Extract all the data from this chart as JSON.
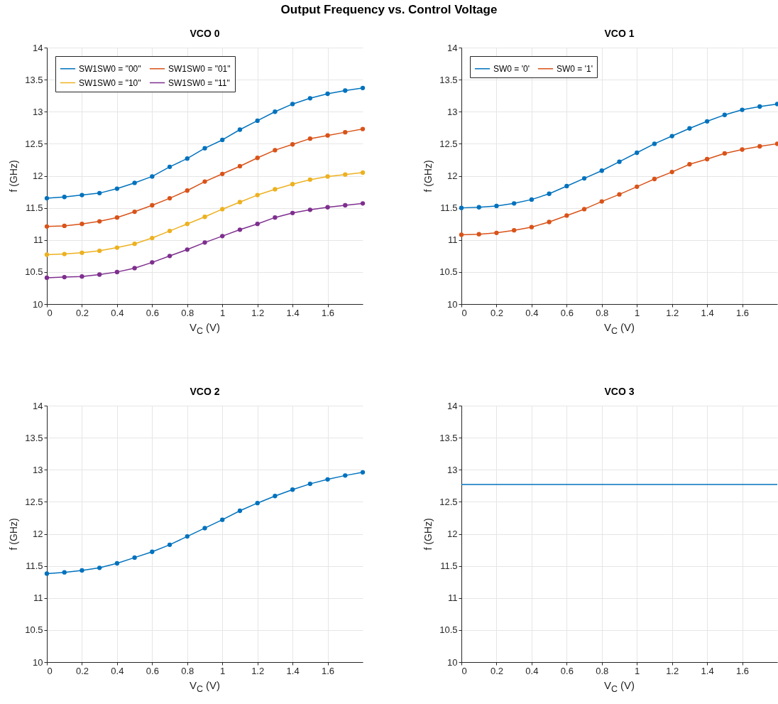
{
  "chart_data": [
    {
      "type": "line",
      "title": "VCO 0",
      "annotations": [
        "Output Frequency vs. Control Voltage"
      ],
      "xlabel": "V$_{C}$ (V)",
      "ylabel": "f (GHz)",
      "x": [
        0,
        0.1,
        0.2,
        0.3,
        0.4,
        0.5,
        0.6,
        0.7,
        0.8,
        0.9,
        1,
        1.1,
        1.2,
        1.3,
        1.4,
        1.5,
        1.6,
        1.7,
        1.8
      ],
      "xlim": [
        0,
        1.8
      ],
      "xticks": [
        0,
        0.2,
        0.4,
        0.6,
        0.8,
        1,
        1.2,
        1.4,
        1.6
      ],
      "ylim": [
        10,
        14
      ],
      "yticks": [
        10,
        10.5,
        11,
        11.5,
        12,
        12.5,
        13,
        13.5,
        14
      ],
      "grid": true,
      "legend": "top left",
      "marker": "circle",
      "line_style": "solid",
      "series": [
        {
          "name": "SW1SW0 = \"00\"",
          "color": "#0072bd",
          "values": [
            11.65,
            11.67,
            11.7,
            11.73,
            11.8,
            11.89,
            11.99,
            12.14,
            12.27,
            12.43,
            12.56,
            12.72,
            12.86,
            13.0,
            13.12,
            13.21,
            13.28,
            13.33,
            13.37
          ]
        },
        {
          "name": "SW1SW0 = \"01\"",
          "color": "#d95319",
          "values": [
            11.21,
            11.22,
            11.25,
            11.29,
            11.35,
            11.44,
            11.54,
            11.65,
            11.77,
            11.91,
            12.03,
            12.15,
            12.28,
            12.4,
            12.49,
            12.58,
            12.63,
            12.68,
            12.73
          ]
        },
        {
          "name": "SW1SW0 = \"10\"",
          "color": "#edb120",
          "values": [
            10.77,
            10.78,
            10.8,
            10.83,
            10.88,
            10.94,
            11.03,
            11.14,
            11.25,
            11.36,
            11.48,
            11.59,
            11.7,
            11.79,
            11.87,
            11.94,
            11.99,
            12.02,
            12.05
          ]
        },
        {
          "name": "SW1SW0 = \"11\"",
          "color": "#7e2f8e",
          "values": [
            10.41,
            10.42,
            10.43,
            10.46,
            10.5,
            10.56,
            10.65,
            10.75,
            10.85,
            10.96,
            11.06,
            11.16,
            11.25,
            11.35,
            11.42,
            11.47,
            11.51,
            11.54,
            11.57
          ]
        }
      ]
    },
    {
      "type": "line",
      "title": "VCO 1",
      "xlabel": "V$_{C}$ (V)",
      "ylabel": "f (GHz)",
      "x": [
        0,
        0.1,
        0.2,
        0.3,
        0.4,
        0.5,
        0.6,
        0.7,
        0.8,
        0.9,
        1,
        1.1,
        1.2,
        1.3,
        1.4,
        1.5,
        1.6,
        1.7,
        1.8
      ],
      "xlim": [
        0,
        1.8
      ],
      "xticks": [
        0,
        0.2,
        0.4,
        0.6,
        0.8,
        1,
        1.2,
        1.4,
        1.6
      ],
      "ylim": [
        10,
        14
      ],
      "yticks": [
        10,
        10.5,
        11,
        11.5,
        12,
        12.5,
        13,
        13.5,
        14
      ],
      "grid": true,
      "legend": "top left",
      "marker": "circle",
      "line_style": "solid",
      "series": [
        {
          "name": "SW0 = '0'",
          "color": "#0072bd",
          "values": [
            11.5,
            11.51,
            11.53,
            11.57,
            11.63,
            11.72,
            11.84,
            11.96,
            12.08,
            12.22,
            12.36,
            12.5,
            12.62,
            12.74,
            12.85,
            12.95,
            13.03,
            13.08,
            13.12
          ]
        },
        {
          "name": "SW0 = '1'",
          "color": "#d95319",
          "values": [
            11.08,
            11.09,
            11.11,
            11.15,
            11.2,
            11.28,
            11.38,
            11.48,
            11.6,
            11.71,
            11.83,
            11.95,
            12.06,
            12.18,
            12.26,
            12.35,
            12.41,
            12.46,
            12.5
          ]
        }
      ]
    },
    {
      "type": "line",
      "title": "VCO 2",
      "xlabel": "V$_{C}$ (V)",
      "ylabel": "f (GHz)",
      "x": [
        0,
        0.1,
        0.2,
        0.3,
        0.4,
        0.5,
        0.6,
        0.7,
        0.8,
        0.9,
        1,
        1.1,
        1.2,
        1.3,
        1.4,
        1.5,
        1.6,
        1.7,
        1.8
      ],
      "xlim": [
        0,
        1.8
      ],
      "xticks": [
        0,
        0.2,
        0.4,
        0.6,
        0.8,
        1,
        1.2,
        1.4,
        1.6
      ],
      "ylim": [
        10,
        14
      ],
      "yticks": [
        10,
        10.5,
        11,
        11.5,
        12,
        12.5,
        13,
        13.5,
        14
      ],
      "grid": true,
      "marker": "circle",
      "line_style": "solid",
      "series": [
        {
          "color": "#0072bd",
          "values": [
            11.38,
            11.4,
            11.43,
            11.47,
            11.54,
            11.63,
            11.72,
            11.83,
            11.96,
            12.09,
            12.22,
            12.36,
            12.48,
            12.59,
            12.69,
            12.78,
            12.85,
            12.91,
            12.96
          ]
        }
      ]
    },
    {
      "type": "line",
      "title": "VCO 3",
      "xlabel": "V$_{C}$ (V)",
      "ylabel": "f (GHz)",
      "x": [
        0,
        1.8
      ],
      "xlim": [
        0,
        1.8
      ],
      "xticks": [
        0,
        0.2,
        0.4,
        0.6,
        0.8,
        1,
        1.2,
        1.4,
        1.6
      ],
      "ylim": [
        10,
        14
      ],
      "yticks": [
        10,
        10.5,
        11,
        11.5,
        12,
        12.5,
        13,
        13.5,
        14
      ],
      "grid": true,
      "marker": "none",
      "line_style": "solid",
      "series": [
        {
          "color": "#0072bd",
          "values": [
            12.77,
            12.77
          ]
        }
      ]
    }
  ]
}
